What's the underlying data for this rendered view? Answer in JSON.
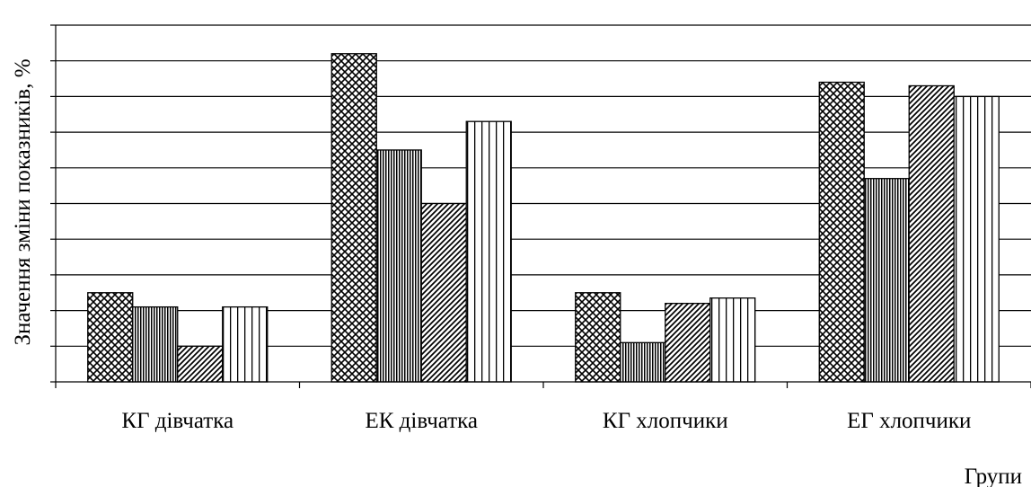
{
  "chart_data": {
    "type": "bar",
    "title": "",
    "xlabel": "Групи",
    "ylabel": "Значення зміни показників, %",
    "categories": [
      "КГ дівчатка",
      "ЕК дівчатка",
      "КГ хлопчики",
      "ЕГ хлопчики"
    ],
    "series": [
      {
        "values": [
          2.5,
          9.2,
          2.5,
          8.4
        ],
        "pattern": "dots"
      },
      {
        "values": [
          2.1,
          6.5,
          1.1,
          5.7
        ],
        "pattern": "vlines-dense"
      },
      {
        "values": [
          1.0,
          5.0,
          2.2,
          8.3
        ],
        "pattern": "diagonal"
      },
      {
        "values": [
          2.1,
          7.3,
          2.35,
          8.0
        ],
        "pattern": "vlines-sparse"
      }
    ],
    "ylim": [
      0,
      10
    ],
    "yticks_shown": false,
    "grid": true,
    "legend": "none"
  }
}
